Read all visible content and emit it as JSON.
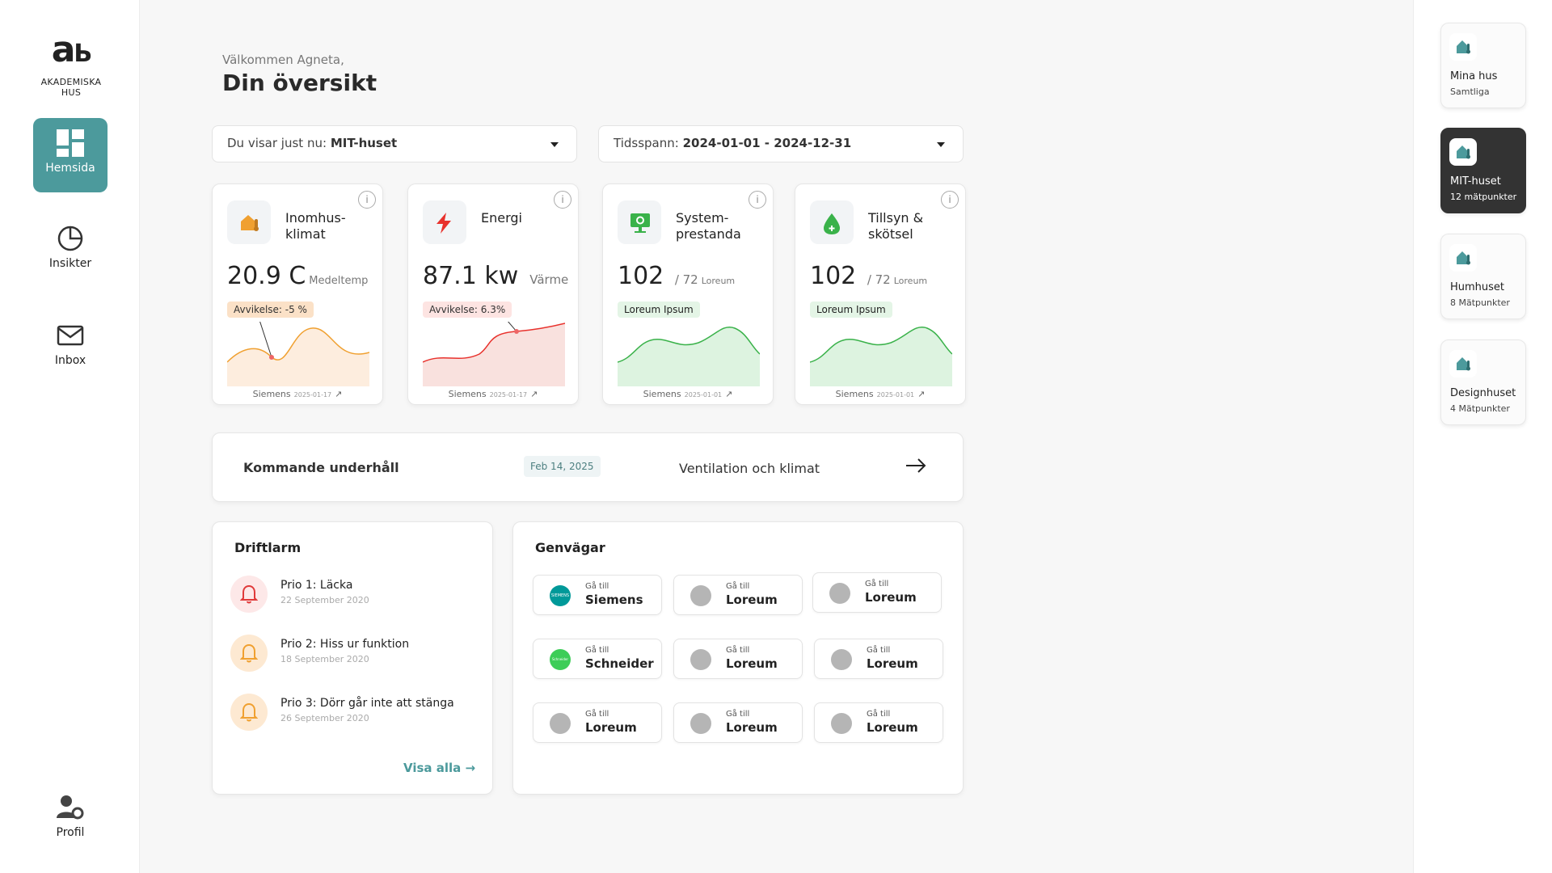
{
  "brand": {
    "logo_text": "AKADEMISKA HUS"
  },
  "nav": {
    "items": [
      {
        "label": "Hemsida",
        "icon": "dashboard-icon",
        "active": true
      },
      {
        "label": "Insikter",
        "icon": "pie-chart-icon",
        "active": false
      },
      {
        "label": "Inbox",
        "icon": "mail-icon",
        "active": false
      }
    ],
    "profile": {
      "label": "Profil",
      "icon": "user-settings-icon"
    }
  },
  "header": {
    "welcome": "Välkommen Agneta,",
    "title": "Din översikt"
  },
  "filters": {
    "building": {
      "prefix": "Du visar just nu:",
      "value": "MIT-huset"
    },
    "timespan": {
      "prefix": "Tidsspann:",
      "value": "2024-01-01 - 2024-12-31"
    }
  },
  "kpis": [
    {
      "title": "Inomhus-klimat",
      "value": "20.9 C",
      "unit": "Medeltemp",
      "badge": "Avvikelse: -5 %",
      "source": "Siemens",
      "date": "2025-01-17",
      "icon": "house-temperature-icon",
      "color": "#f0a030"
    },
    {
      "title": "Energi",
      "value": "87.1 kw",
      "unit": "Värme",
      "badge": "Avvikelse: 6.3%",
      "source": "Siemens",
      "date": "2025-01-17",
      "icon": "lightning-icon",
      "color": "#e8312c"
    },
    {
      "title": "System-prestanda",
      "value": "102",
      "unit": "/ 72",
      "unit_small": "Loreum",
      "badge": "Loreum Ipsum",
      "source": "Siemens",
      "date": "2025-01-01",
      "icon": "monitor-gear-icon",
      "color": "#3ab24a"
    },
    {
      "title": "Tillsyn & skötsel",
      "value": "102",
      "unit": "/ 72",
      "unit_small": "Loreum",
      "badge": "Loreum Ipsum",
      "source": "Siemens",
      "date": "2025-01-01",
      "icon": "drop-icon",
      "color": "#3ab24a"
    }
  ],
  "maintenance": {
    "label": "Kommande underhåll",
    "date": "Feb 14, 2025",
    "description": "Ventilation och klimat"
  },
  "alarms": {
    "title": "Driftlarm",
    "items": [
      {
        "title": "Prio 1: Läcka",
        "date": "22 September 2020",
        "color": "#e03a3a"
      },
      {
        "title": "Prio 2: Hiss ur funktion",
        "date": "18 September 2020",
        "color": "#f0a030"
      },
      {
        "title": "Prio 3: Dörr går inte att stänga",
        "date": "26 September 2020",
        "color": "#f0a030"
      }
    ],
    "show_all": "Visa alla"
  },
  "shortcuts": {
    "title": "Genvägar",
    "goto_label": "Gå till",
    "items": [
      {
        "name": "Siemens",
        "color": "#009999",
        "logo_text": "SIEMENS"
      },
      {
        "name": "Loreum",
        "color": "#b5b5b5"
      },
      {
        "name": "Loreum",
        "color": "#b5b5b5"
      },
      {
        "name": "Schneider",
        "color": "#3dcd58",
        "logo_text": "Schneider"
      },
      {
        "name": "Loreum",
        "color": "#b5b5b5"
      },
      {
        "name": "Loreum",
        "color": "#b5b5b5"
      },
      {
        "name": "Loreum",
        "color": "#b5b5b5"
      },
      {
        "name": "Loreum",
        "color": "#b5b5b5"
      },
      {
        "name": "Loreum",
        "color": "#b5b5b5"
      }
    ]
  },
  "buildings": [
    {
      "name": "Mina hus",
      "sub": "Samtliga",
      "active": false
    },
    {
      "name": "MIT-huset",
      "sub": "12 mätpunkter",
      "active": true
    },
    {
      "name": "Humhuset",
      "sub": "8 Mätpunkter",
      "active": false
    },
    {
      "name": "Designhuset",
      "sub": "4 Mätpunkter",
      "active": false
    }
  ],
  "colors": {
    "accent": "#4c9a9c",
    "dark": "#333333"
  }
}
